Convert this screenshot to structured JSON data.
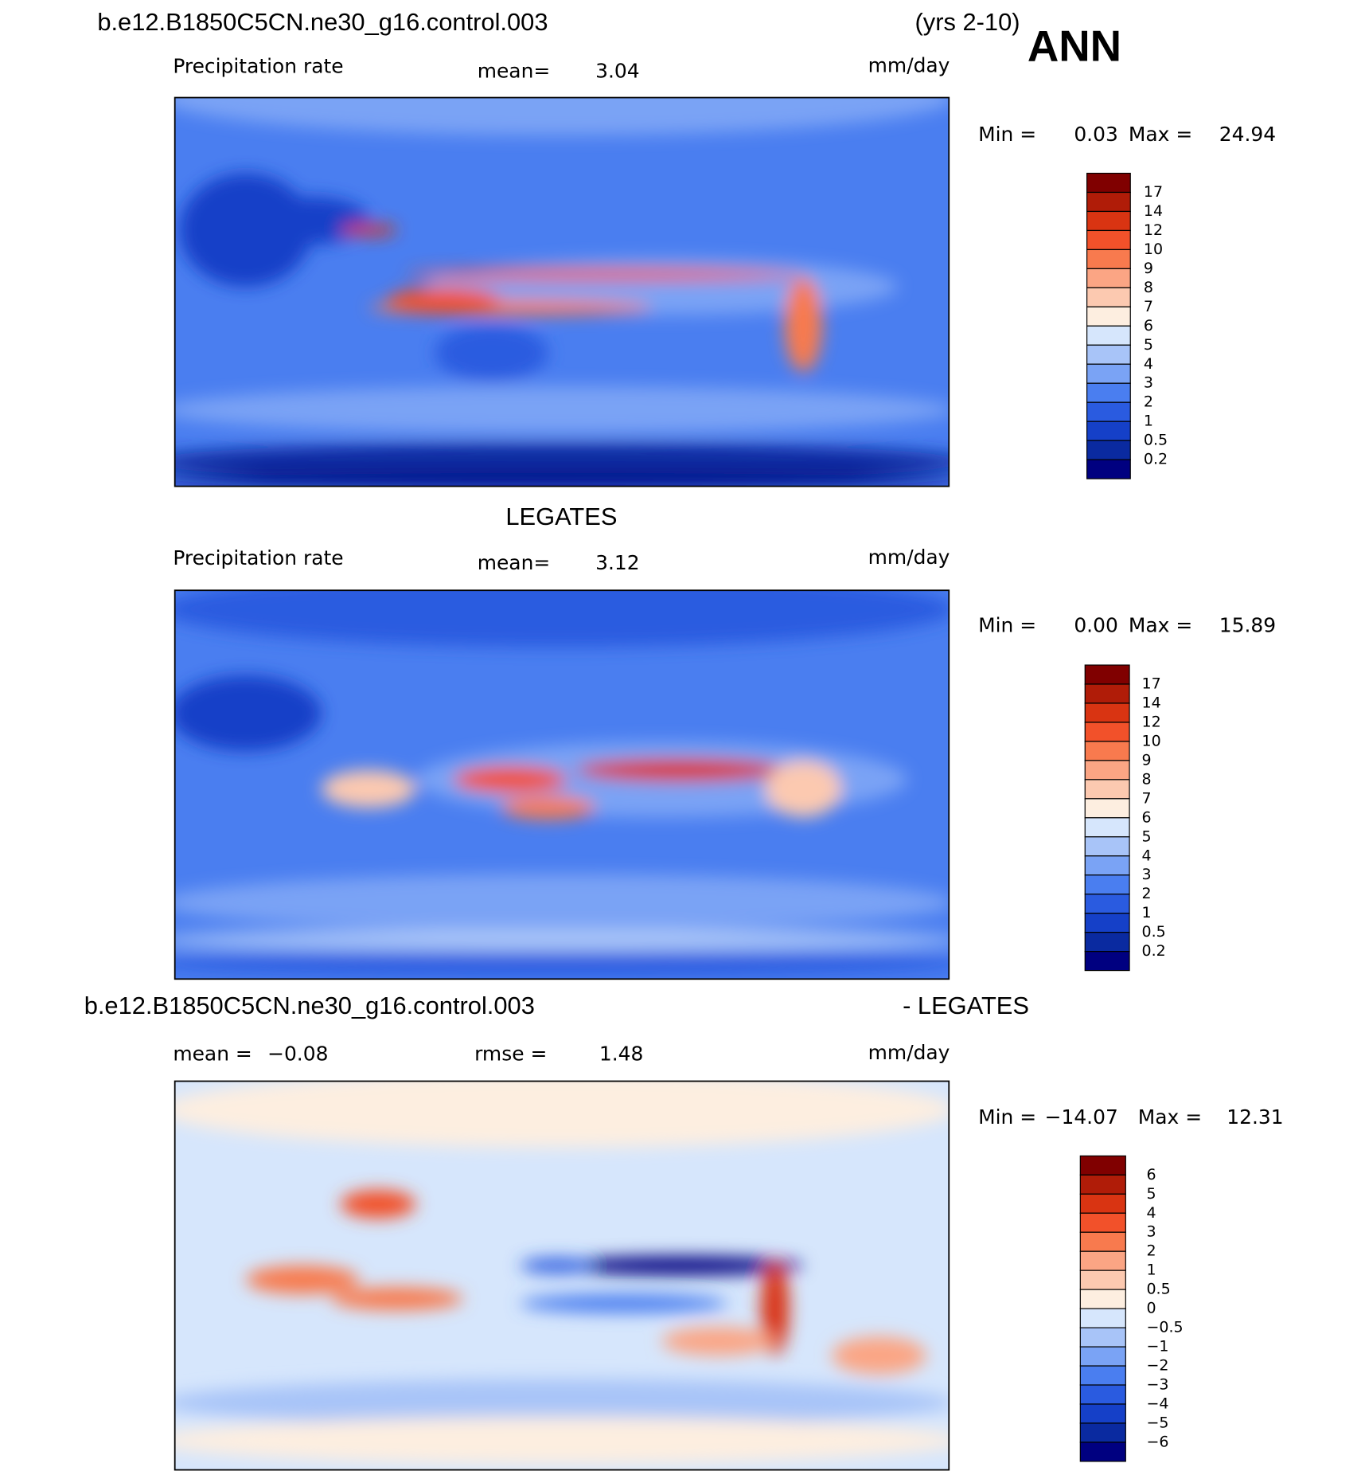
{
  "header": {
    "case": "b.e12.B1850C5CN.ne30_g16.control.003",
    "years": "(yrs 2-10)",
    "season": "ANN"
  },
  "panels": [
    {
      "variable": "Precipitation rate",
      "mean_label": "mean=",
      "mean": "3.04",
      "units": "mm/day",
      "min_label": "Min =",
      "min": "0.03",
      "max_label": "Max =",
      "max": "24.94",
      "levels": [
        "17",
        "14",
        "12",
        "10",
        "9",
        "8",
        "7",
        "6",
        "5",
        "4",
        "3",
        "2",
        "1",
        "0.5",
        "0.2"
      ],
      "colors": [
        "#800000",
        "#b01c08",
        "#d93412",
        "#f2512a",
        "#f87a4e",
        "#fba584",
        "#fcc9b0",
        "#fdeee0",
        "#d6e6fc",
        "#a8c4f8",
        "#7aa3f5",
        "#4a7ef0",
        "#2a5be0",
        "#1540c8",
        "#0a2aa0",
        "#000080"
      ]
    },
    {
      "title": "LEGATES",
      "variable": "Precipitation rate",
      "mean_label": "mean=",
      "mean": "3.12",
      "units": "mm/day",
      "min_label": "Min =",
      "min": "0.00",
      "max_label": "Max =",
      "max": "15.89",
      "levels": [
        "17",
        "14",
        "12",
        "10",
        "9",
        "8",
        "7",
        "6",
        "5",
        "4",
        "3",
        "2",
        "1",
        "0.5",
        "0.2"
      ],
      "colors": [
        "#800000",
        "#b01c08",
        "#d93412",
        "#f2512a",
        "#f87a4e",
        "#fba584",
        "#fcc9b0",
        "#fdeee0",
        "#d6e6fc",
        "#a8c4f8",
        "#7aa3f5",
        "#4a7ef0",
        "#2a5be0",
        "#1540c8",
        "#0a2aa0",
        "#000080"
      ]
    },
    {
      "title_left": "b.e12.B1850C5CN.ne30_g16.control.003",
      "title_right": "- LEGATES",
      "mean_label": "mean =",
      "mean": "−0.08",
      "rmse_label": "rmse =",
      "rmse": "1.48",
      "units": "mm/day",
      "min_label": "Min =",
      "min": "−14.07",
      "max_label": "Max =",
      "max": "12.31",
      "levels": [
        "6",
        "5",
        "4",
        "3",
        "2",
        "1",
        "0.5",
        "0",
        "−0.5",
        "−1",
        "−2",
        "−3",
        "−4",
        "−5",
        "−6"
      ],
      "colors": [
        "#800000",
        "#b01c08",
        "#d93412",
        "#f2512a",
        "#f87a4e",
        "#fba584",
        "#fcc9b0",
        "#fdeee0",
        "#d6e6fc",
        "#a8c4f8",
        "#7aa3f5",
        "#4a7ef0",
        "#2a5be0",
        "#1540c8",
        "#0a2aa0",
        "#000080"
      ]
    }
  ]
}
